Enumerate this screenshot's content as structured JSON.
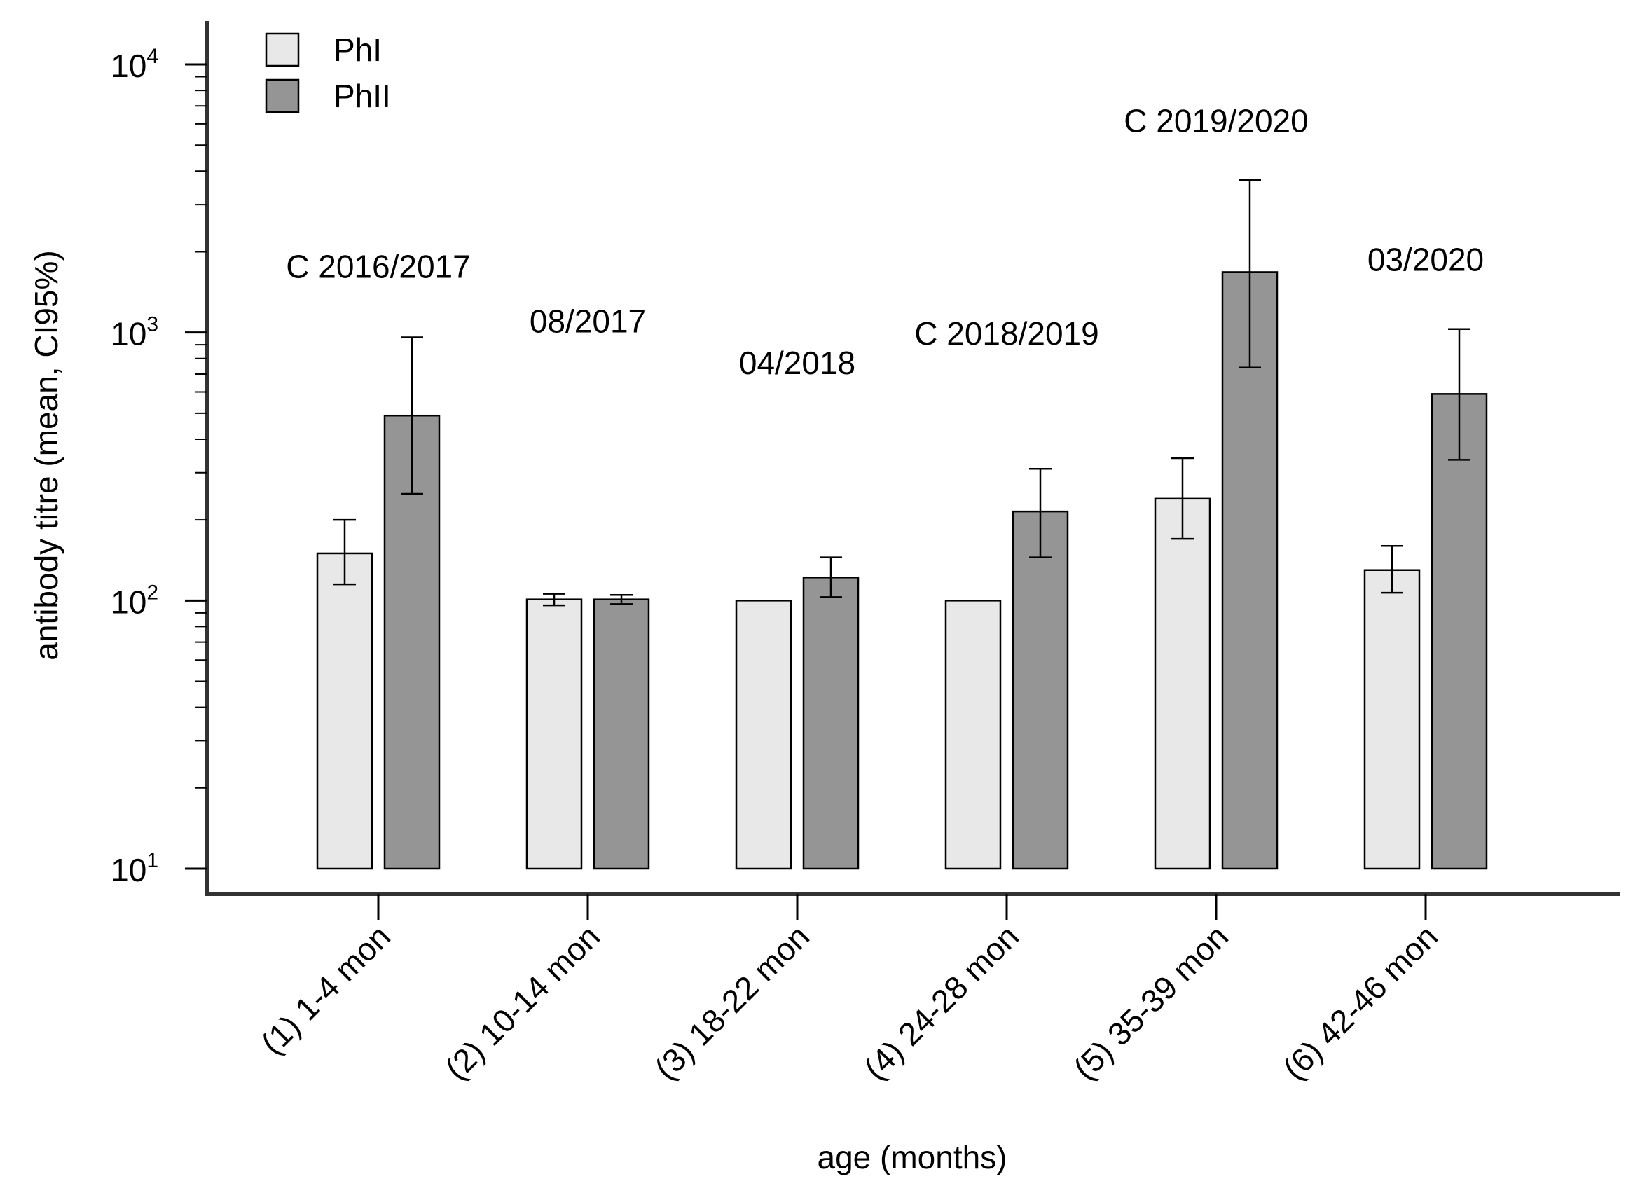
{
  "chart_data": {
    "type": "bar",
    "scale": "log",
    "title": "",
    "xlabel": "age (months)",
    "ylabel": "antibody titre (mean, CI95%)",
    "ylim": [
      10,
      10000
    ],
    "y_ticks": [
      {
        "base": "10",
        "exp": "1"
      },
      {
        "base": "10",
        "exp": "2"
      },
      {
        "base": "10",
        "exp": "3"
      },
      {
        "base": "10",
        "exp": "4"
      }
    ],
    "grid": false,
    "legend_position": "top-left",
    "categories": [
      "(1) 1-4 mon",
      "(2) 10-14 mon",
      "(3) 18-22 mon",
      "(4) 24-28 mon",
      "(5) 35-39 mon",
      "(6) 42-46 mon"
    ],
    "annotations": [
      "C 2016/2017",
      "08/2017",
      "04/2018",
      "C 2018/2019",
      "C 2019/2020",
      "03/2020"
    ],
    "annotation_values": [
      1600,
      1000,
      700,
      900,
      5600,
      1700
    ],
    "series": [
      {
        "name": "PhI",
        "color": "#e8e8e8",
        "values": [
          150,
          101,
          100,
          100,
          240,
          130
        ],
        "ci_low": [
          115,
          96,
          null,
          null,
          170,
          107
        ],
        "ci_high": [
          200,
          106,
          null,
          null,
          340,
          160
        ]
      },
      {
        "name": "PhII",
        "color": "#959595",
        "values": [
          490,
          101,
          122,
          215,
          1680,
          590
        ],
        "ci_low": [
          250,
          97,
          103,
          145,
          740,
          335
        ],
        "ci_high": [
          960,
          105,
          145,
          310,
          3700,
          1030
        ]
      }
    ]
  }
}
